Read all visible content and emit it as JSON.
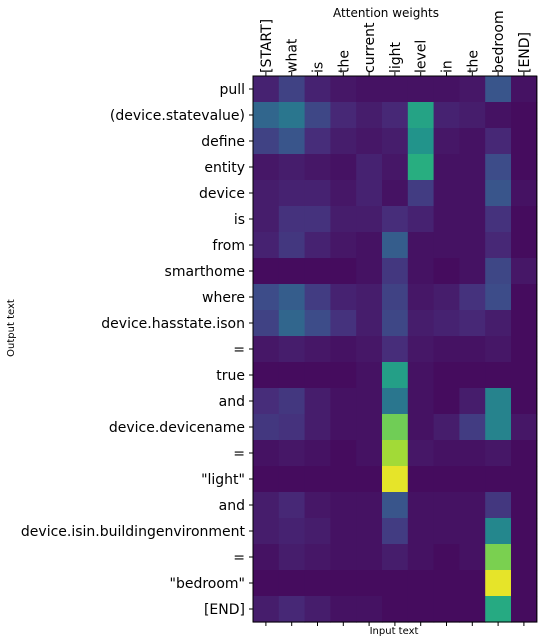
{
  "chart_data": {
    "type": "heatmap",
    "title": "Attention weights",
    "xlabel": "Input text",
    "ylabel": "Output text",
    "x_labels": [
      "[START]",
      "what",
      "is",
      "the",
      "current",
      "light",
      "level",
      "in",
      "the",
      "bedroom",
      "[END]"
    ],
    "y_labels": [
      "pull",
      "(device.statevalue)",
      "define",
      "entity",
      "device",
      "is",
      "from",
      "smarthome",
      "where",
      "device.hasstate.ison",
      "=",
      "true",
      "and",
      "device.devicename",
      "=",
      "\"light\"",
      "and",
      "device.isin.buildingenvironment",
      "=",
      "\"bedroom\"",
      "[END]"
    ],
    "colormap": "viridis",
    "vmin": 0,
    "vmax": 0.6,
    "values": [
      [
        0.06,
        0.12,
        0.06,
        0.04,
        0.03,
        0.03,
        0.03,
        0.03,
        0.04,
        0.16,
        0.03
      ],
      [
        0.2,
        0.24,
        0.13,
        0.07,
        0.05,
        0.07,
        0.35,
        0.06,
        0.05,
        0.03,
        0.02
      ],
      [
        0.12,
        0.16,
        0.08,
        0.05,
        0.04,
        0.05,
        0.31,
        0.04,
        0.03,
        0.07,
        0.02
      ],
      [
        0.04,
        0.05,
        0.04,
        0.03,
        0.06,
        0.04,
        0.38,
        0.03,
        0.03,
        0.14,
        0.02
      ],
      [
        0.05,
        0.06,
        0.06,
        0.04,
        0.06,
        0.03,
        0.11,
        0.03,
        0.03,
        0.16,
        0.03
      ],
      [
        0.05,
        0.09,
        0.09,
        0.05,
        0.05,
        0.08,
        0.06,
        0.03,
        0.03,
        0.09,
        0.02
      ],
      [
        0.06,
        0.1,
        0.06,
        0.04,
        0.03,
        0.18,
        0.03,
        0.03,
        0.03,
        0.07,
        0.02
      ],
      [
        0.02,
        0.02,
        0.02,
        0.02,
        0.03,
        0.1,
        0.03,
        0.02,
        0.03,
        0.13,
        0.04
      ],
      [
        0.14,
        0.18,
        0.11,
        0.06,
        0.05,
        0.12,
        0.04,
        0.05,
        0.09,
        0.14,
        0.02
      ],
      [
        0.12,
        0.2,
        0.14,
        0.09,
        0.05,
        0.13,
        0.05,
        0.06,
        0.07,
        0.05,
        0.02
      ],
      [
        0.04,
        0.05,
        0.04,
        0.03,
        0.04,
        0.08,
        0.04,
        0.03,
        0.03,
        0.04,
        0.02
      ],
      [
        0.02,
        0.02,
        0.02,
        0.02,
        0.03,
        0.34,
        0.03,
        0.02,
        0.02,
        0.02,
        0.02
      ],
      [
        0.08,
        0.1,
        0.05,
        0.03,
        0.03,
        0.24,
        0.03,
        0.02,
        0.05,
        0.27,
        0.02
      ],
      [
        0.1,
        0.09,
        0.05,
        0.03,
        0.03,
        0.47,
        0.03,
        0.05,
        0.11,
        0.27,
        0.04
      ],
      [
        0.03,
        0.04,
        0.03,
        0.02,
        0.03,
        0.52,
        0.04,
        0.03,
        0.03,
        0.04,
        0.02
      ],
      [
        0.02,
        0.02,
        0.02,
        0.02,
        0.02,
        0.58,
        0.02,
        0.02,
        0.02,
        0.02,
        0.02
      ],
      [
        0.05,
        0.07,
        0.04,
        0.03,
        0.03,
        0.16,
        0.03,
        0.03,
        0.03,
        0.1,
        0.02
      ],
      [
        0.05,
        0.06,
        0.05,
        0.03,
        0.03,
        0.11,
        0.03,
        0.03,
        0.03,
        0.28,
        0.02
      ],
      [
        0.03,
        0.05,
        0.04,
        0.03,
        0.03,
        0.05,
        0.03,
        0.02,
        0.03,
        0.48,
        0.02
      ],
      [
        0.02,
        0.02,
        0.02,
        0.02,
        0.02,
        0.02,
        0.02,
        0.02,
        0.02,
        0.58,
        0.02
      ],
      [
        0.05,
        0.07,
        0.05,
        0.03,
        0.03,
        0.02,
        0.02,
        0.02,
        0.02,
        0.37,
        0.02
      ]
    ]
  }
}
